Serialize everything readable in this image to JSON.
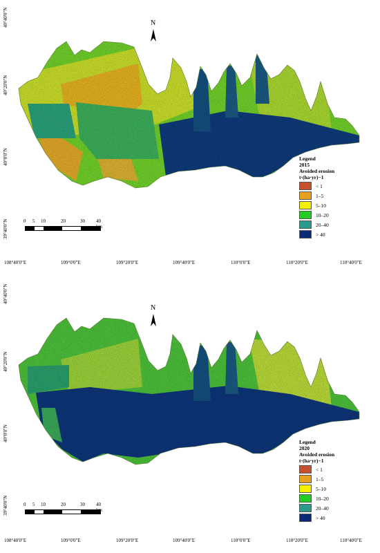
{
  "panels": [
    {
      "year": "2015",
      "legend": {
        "title": "Legend",
        "year": "2015",
        "variable": "Avoided erosion",
        "unit": "t·(ha·yr)−1"
      },
      "north": "N"
    },
    {
      "year": "2020",
      "legend": {
        "title": "Legend",
        "year": "2020",
        "variable": "Avoided erosion",
        "unit": "t·(ha·yr)−1"
      },
      "north": "N"
    }
  ],
  "legend_classes": [
    {
      "label": "< 1",
      "color": "#c8502e"
    },
    {
      "label": "1–5",
      "color": "#e8a020"
    },
    {
      "label": "5–10",
      "color": "#f5f000"
    },
    {
      "label": "10–20",
      "color": "#22cc22"
    },
    {
      "label": "20–40",
      "color": "#2a9a8a"
    },
    {
      "label": "> 40",
      "color": "#0a2a78"
    }
  ],
  "lat_labels": [
    "40°40'0\"N",
    "40°20'0\"N",
    "40°0'0\"N",
    "39°40'0\"N"
  ],
  "lon_labels": [
    "108°40'0\"E",
    "109°0'0\"E",
    "109°20'0\"E",
    "109°40'0\"E",
    "110°0'0\"E",
    "110°20'0\"E",
    "110°40'0\"E"
  ],
  "scale": {
    "ticks": [
      "0",
      "5",
      "10",
      "20",
      "30",
      "40 km"
    ]
  }
}
